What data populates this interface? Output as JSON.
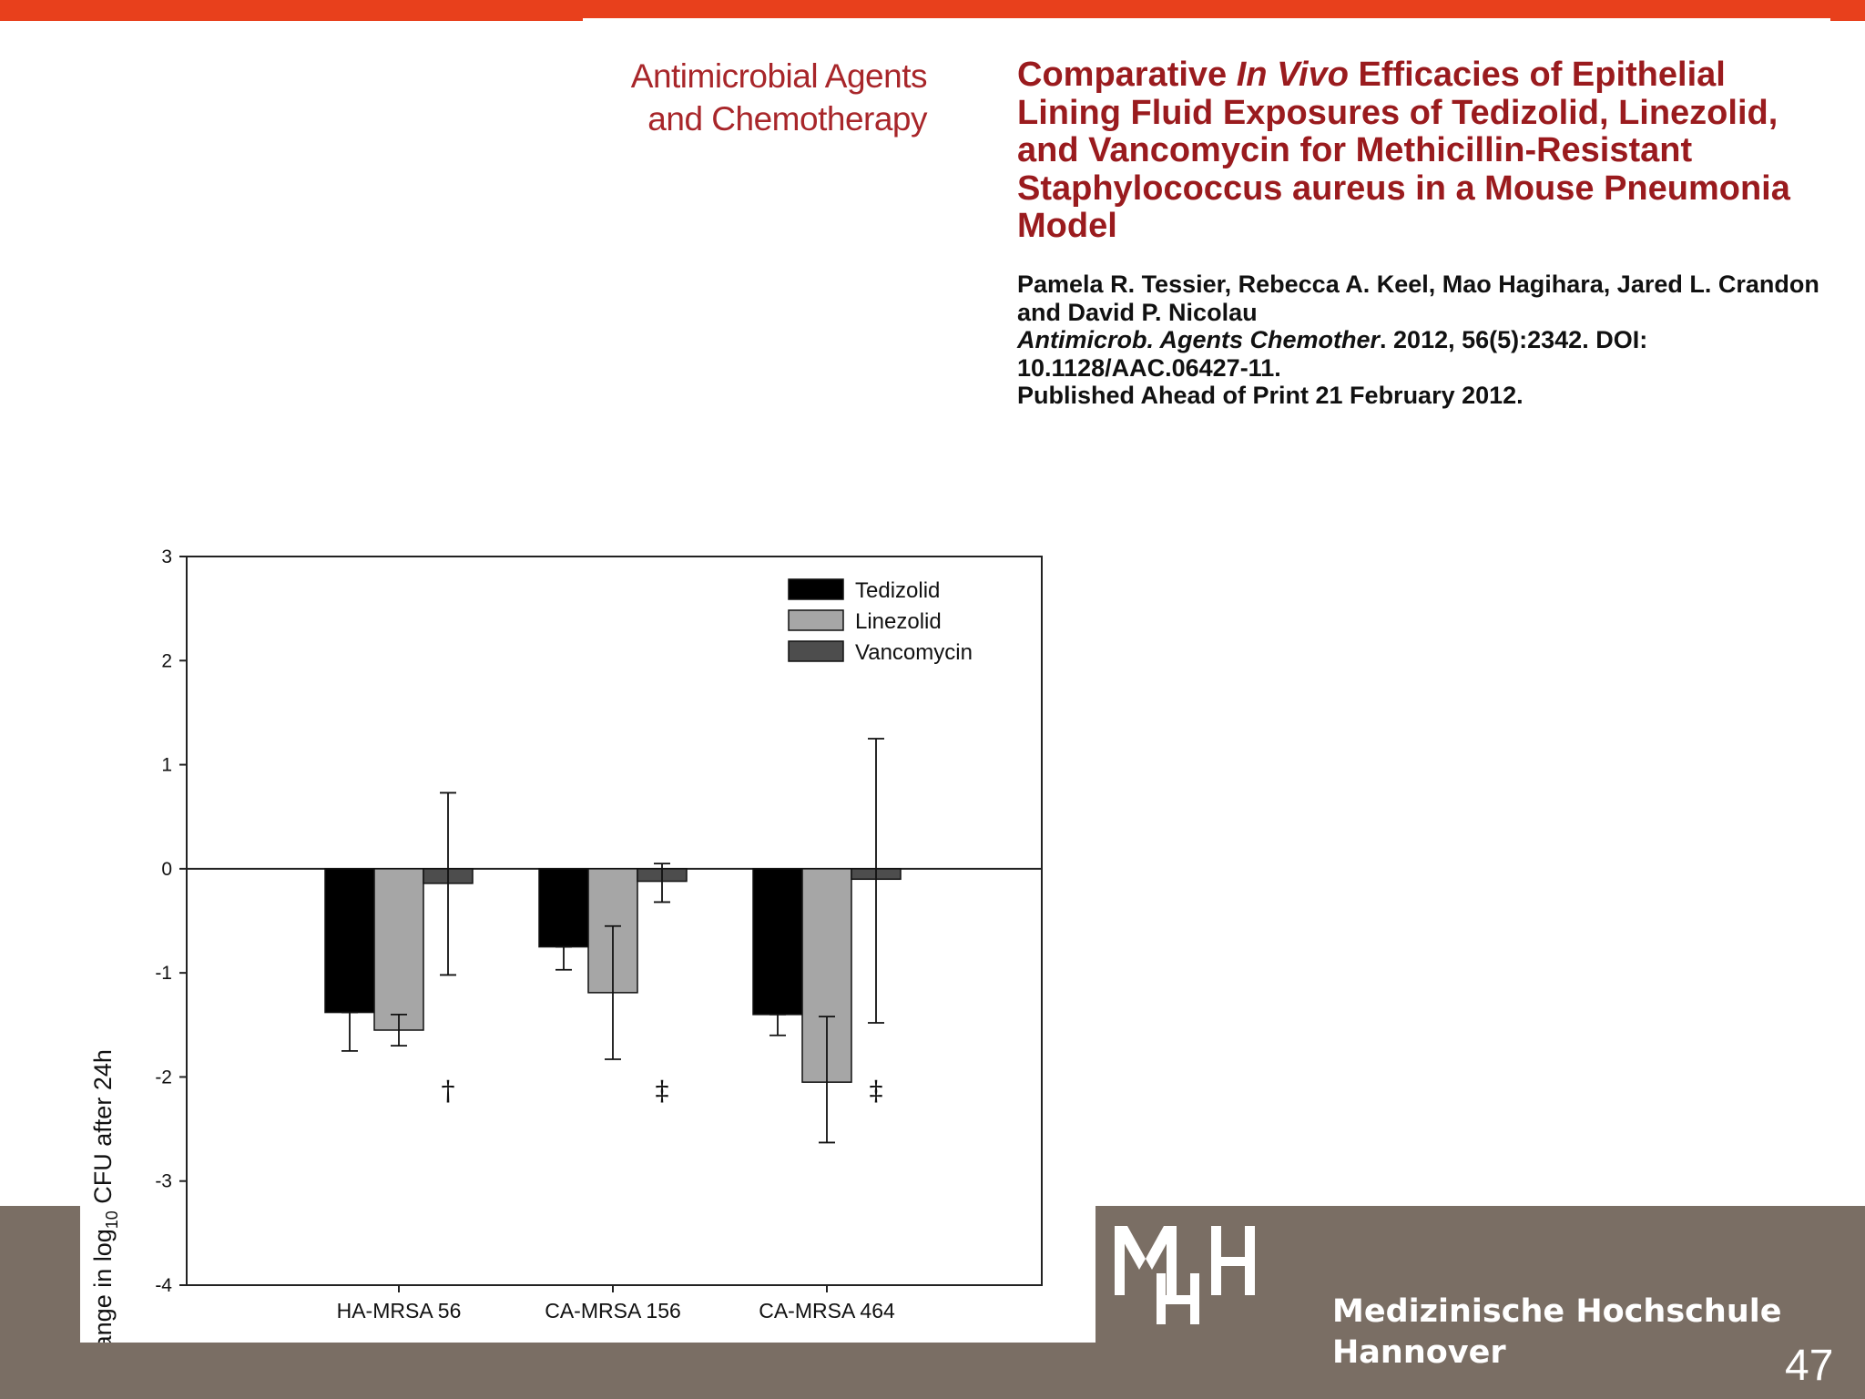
{
  "header": {
    "journal_name": [
      "Antimicrobial Agents",
      "and Chemotherapy"
    ],
    "title": {
      "part1": "Comparative ",
      "italic": "In Vivo",
      "part2": " Efficacies of Epithelial Lining Fluid Exposures of Tedizolid, Linezolid, and Vancomycin for Methicillin-Resistant Staphylococcus aureus in a Mouse Pneumonia Model"
    },
    "citation": {
      "authors": "Pamela R. Tessier, Rebecca A. Keel, Mao Hagihara, Jared L. Crandon and David P. Nicolau",
      "journal_italic": "Antimicrob. Agents Chemother",
      "journal_rest": ". 2012, 56(5):2342. DOI: 10.1128/AAC.06427-11.",
      "published": "Published Ahead of Print 21 February 2012."
    }
  },
  "footer": {
    "institution": [
      "Medizinische Hochschule",
      "Hannover"
    ],
    "page_number": "47"
  },
  "colors": {
    "top_bar": "#e8401c",
    "title": "#9a1b1e",
    "footer": "#7a6e64",
    "tedizolid": "#000000",
    "linezolid": "#a6a6a6",
    "vancomycin": "#4d4d4d"
  },
  "chart_data": {
    "type": "bar",
    "ylabel_main": "Change in log",
    "ylabel_sub": "10",
    "ylabel_rest": " CFU after 24h",
    "ylim": [
      -4,
      3
    ],
    "yticks": [
      "3",
      "2",
      "1",
      "0",
      "-1",
      "-2",
      "-3",
      "-4"
    ],
    "categories": [
      "HA-MRSA 56",
      "CA-MRSA 156",
      "CA-MRSA 464"
    ],
    "legend_position": "top-right",
    "series": [
      {
        "name": "Tedizolid",
        "values": [
          -1.38,
          -0.75,
          -1.4
        ],
        "err_low": [
          -1.75,
          -0.97,
          -1.6
        ],
        "err_high": [
          -1.38,
          -0.75,
          -1.4
        ]
      },
      {
        "name": "Linezolid",
        "values": [
          -1.55,
          -1.19,
          -2.05
        ],
        "err_low": [
          -1.7,
          -1.83,
          -2.63
        ],
        "err_high": [
          -1.4,
          -0.55,
          -1.42
        ]
      },
      {
        "name": "Vancomycin",
        "values": [
          -0.14,
          -0.12,
          -0.1
        ],
        "err_low": [
          -1.02,
          -0.32,
          -1.48
        ],
        "err_high": [
          0.73,
          0.05,
          1.25
        ]
      }
    ],
    "annotations": [
      "†",
      "‡",
      "‡"
    ]
  }
}
